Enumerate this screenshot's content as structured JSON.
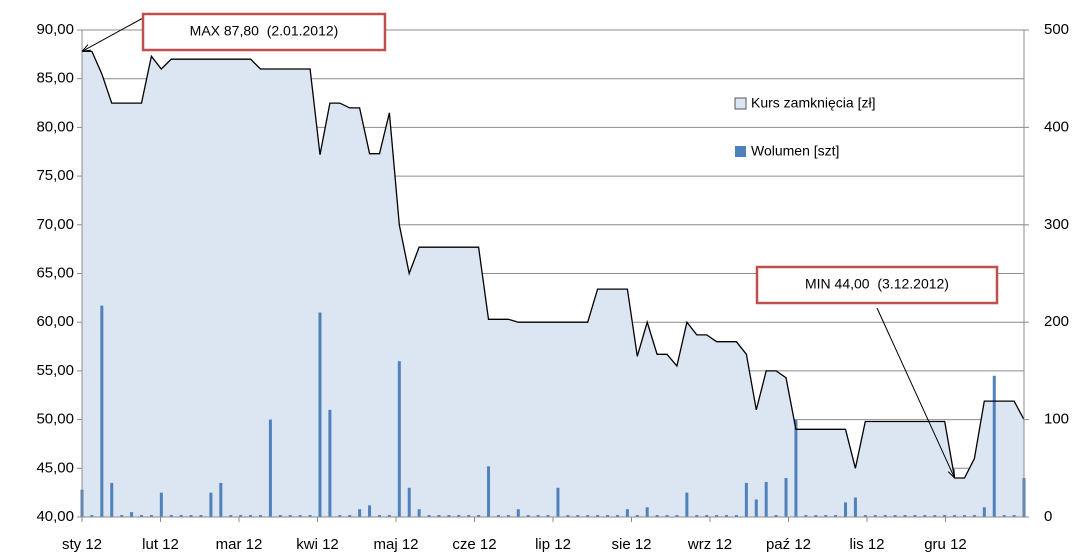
{
  "chart_data": {
    "type": "line",
    "x_labels": [
      "sty 12",
      "lut 12",
      "mar 12",
      "kwi 12",
      "maj 12",
      "cze 12",
      "lip 12",
      "sie 12",
      "wrz 12",
      "paź 12",
      "lis 12",
      "gru 12"
    ],
    "series": [
      {
        "name": "Kurs zamknięcia [zł]",
        "color": "#000000",
        "fill": "#dce6f2",
        "axis": "y",
        "values": [
          87.8,
          87.8,
          85.5,
          82.5,
          82.5,
          82.5,
          82.5,
          87.3,
          86.0,
          87,
          87,
          87,
          87,
          87,
          87,
          87,
          87,
          87,
          86,
          86,
          86,
          86,
          86,
          86,
          77.2,
          82.5,
          82.5,
          82,
          82,
          77.3,
          77.3,
          81.5,
          70,
          65,
          67.7,
          67.7,
          67.7,
          67.7,
          67.7,
          67.7,
          67.7,
          60.3,
          60.3,
          60.3,
          60,
          60,
          60,
          60,
          60,
          60,
          60,
          60,
          63.4,
          63.4,
          63.4,
          63.4,
          56.5,
          60,
          56.7,
          56.7,
          55.5,
          60,
          58.7,
          58.7,
          58,
          58,
          58,
          56.7,
          51,
          55,
          55,
          54.3,
          49,
          49,
          49,
          49,
          49,
          49,
          45,
          49.8,
          49.8,
          49.8,
          49.8,
          49.8,
          49.8,
          49.8,
          49.8,
          49.8,
          44,
          44,
          46,
          51.9,
          51.9,
          51.9,
          51.9,
          50
        ]
      },
      {
        "name": "Wolumen [szt]",
        "color": "#4f81bd",
        "axis": "y2",
        "values": [
          28,
          2,
          217,
          35,
          2,
          5,
          2,
          2,
          25,
          2,
          2,
          2,
          2,
          25,
          35,
          2,
          2,
          2,
          2,
          100,
          2,
          2,
          2,
          2,
          210,
          110,
          2,
          2,
          8,
          12,
          2,
          2,
          160,
          30,
          8,
          2,
          2,
          2,
          2,
          2,
          2,
          52,
          2,
          2,
          8,
          2,
          2,
          2,
          30,
          2,
          2,
          2,
          2,
          2,
          2,
          8,
          2,
          10,
          2,
          2,
          2,
          25,
          2,
          2,
          2,
          2,
          2,
          35,
          18,
          36,
          2,
          40,
          100,
          2,
          2,
          2,
          2,
          15,
          20,
          2,
          2,
          2,
          2,
          2,
          2,
          2,
          2,
          2,
          2,
          2,
          2,
          10,
          145,
          2,
          2,
          40
        ]
      }
    ],
    "ylim": [
      40,
      90
    ],
    "yticks": [
      {
        "value": 40,
        "label": "40,00"
      },
      {
        "value": 45,
        "label": "45,00"
      },
      {
        "value": 50,
        "label": "50,00"
      },
      {
        "value": 55,
        "label": "55,00"
      },
      {
        "value": 60,
        "label": "60,00"
      },
      {
        "value": 65,
        "label": "65,00"
      },
      {
        "value": 70,
        "label": "70,00"
      },
      {
        "value": 75,
        "label": "75,00"
      },
      {
        "value": 80,
        "label": "80,00"
      },
      {
        "value": 85,
        "label": "85,00"
      },
      {
        "value": 90,
        "label": "90,00"
      }
    ],
    "y2lim": [
      0,
      500
    ],
    "y2ticks": [
      0,
      100,
      200,
      300,
      400,
      500
    ],
    "grid": true,
    "legend": "upper right",
    "annotations": [
      {
        "text": "MAX 87,80  (2.01.2012)",
        "target": "max"
      },
      {
        "text": "MIN 44,00  (3.12.2012)",
        "target": "min"
      }
    ]
  }
}
